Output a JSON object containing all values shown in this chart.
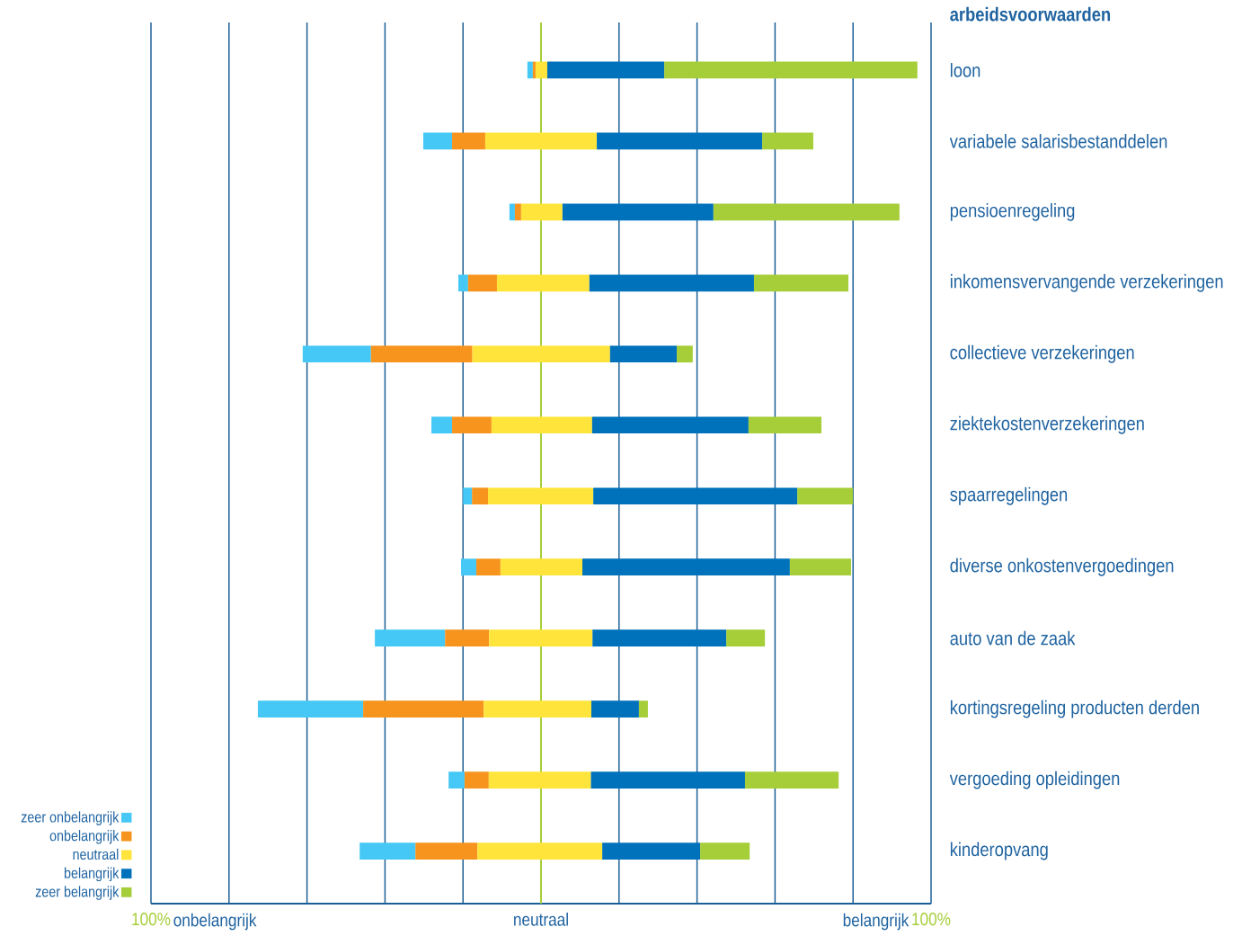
{
  "chart_data": {
    "type": "bar",
    "orientation": "horizontal",
    "title": "arbeidsvoorwaarden",
    "categories": [
      "loon",
      "variabele salarisbestanddelen",
      "pensioenregeling",
      "inkomensvervangende verzekeringen",
      "collectieve verzekeringen",
      "ziektekostenverzekeringen",
      "spaarregelingen",
      "diverse onkostenvergoedingen",
      "auto van de zaak",
      "kortingsregeling producten derden",
      "vergoeding opleidingen",
      "kinderopvang"
    ],
    "series": [
      {
        "name": "zeer onbelangrijk",
        "color": "#45c8f5",
        "base": [
          -3.5,
          -30.2,
          -8.1,
          -21.2,
          -61.1,
          -28.1,
          -20.0,
          -20.5,
          -42.6,
          -72.6,
          -23.7,
          -46.5
        ],
        "values": [
          1.4,
          7.4,
          1.4,
          2.5,
          17.5,
          5.3,
          2.3,
          3.9,
          18.0,
          27.0,
          4.1,
          14.3
        ]
      },
      {
        "name": "onbelangrijk",
        "color": "#f7941d",
        "base": [
          -2.1,
          -22.8,
          -6.7,
          -18.7,
          -43.6,
          -22.8,
          -17.7,
          -16.6,
          -24.6,
          -45.6,
          -19.6,
          -32.2
        ],
        "values": [
          0.7,
          8.5,
          1.6,
          7.4,
          26.0,
          10.1,
          4.1,
          6.2,
          11.3,
          30.9,
          6.2,
          15.9
        ]
      },
      {
        "name": "neutraal",
        "color": "#ffe53b",
        "base": [
          -1.4,
          -14.3,
          -5.1,
          -11.3,
          -17.6,
          -12.7,
          -13.6,
          -10.4,
          -13.3,
          -14.7,
          -13.4,
          -16.3
        ],
        "values": [
          3.0,
          28.6,
          10.6,
          23.7,
          35.3,
          25.8,
          27.0,
          21.0,
          26.5,
          27.6,
          26.2,
          32.0
        ]
      },
      {
        "name": "belangrijk",
        "color": "#0072bc",
        "base": [
          1.6,
          14.3,
          5.5,
          12.4,
          17.7,
          13.1,
          13.4,
          10.6,
          13.2,
          12.9,
          12.8,
          15.7
        ],
        "values": [
          30.0,
          42.4,
          38.7,
          42.2,
          17.1,
          40.1,
          52.3,
          53.2,
          34.3,
          12.2,
          39.5,
          25.1
        ]
      },
      {
        "name": "zeer belangrijk",
        "color": "#a6ce39",
        "base": [
          31.6,
          56.7,
          44.2,
          54.6,
          34.8,
          53.2,
          65.7,
          63.8,
          47.5,
          25.1,
          52.3,
          40.8
        ],
        "values": [
          64.9,
          13.1,
          47.7,
          24.2,
          4.1,
          18.7,
          14.3,
          15.7,
          9.9,
          2.3,
          24.0,
          12.7
        ]
      }
    ],
    "xlim": [
      -100,
      100
    ],
    "xticks": [
      {
        "value": -100,
        "label": "100%"
      },
      {
        "value": -80,
        "label": null
      },
      {
        "value": -60,
        "label": null
      },
      {
        "value": -40,
        "label": null
      },
      {
        "value": -20,
        "label": null
      },
      {
        "value": 0,
        "label": "neutraal"
      },
      {
        "value": 20,
        "label": null
      },
      {
        "value": 40,
        "label": null
      },
      {
        "value": 60,
        "label": null
      },
      {
        "value": 80,
        "label": null
      },
      {
        "value": 100,
        "label": "100%"
      }
    ],
    "annotations": [
      "onbelangrijk",
      "belangrijk"
    ],
    "grid": "x",
    "ref_lines": [
      {
        "axis": "x",
        "value": 0,
        "color": "#a6ce39"
      }
    ],
    "legend": "bottom left"
  }
}
